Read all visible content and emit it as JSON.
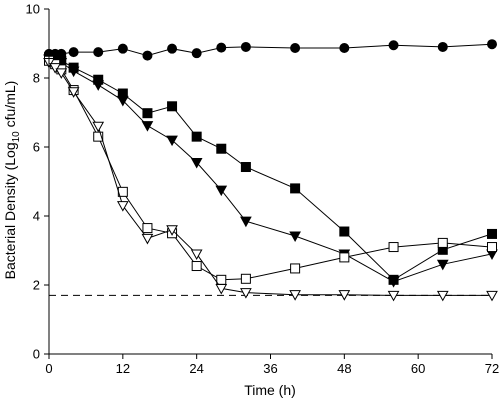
{
  "chart_data": {
    "type": "line",
    "xlabel": "Time (h)",
    "ylabel_main": "Bacterial Density (Log",
    "ylabel_sub": "10",
    "ylabel_tail": " cfu/mL)",
    "xlim": [
      0,
      72
    ],
    "ylim": [
      0,
      10
    ],
    "xticks": [
      0,
      12,
      24,
      36,
      48,
      60,
      72
    ],
    "yticks": [
      0,
      2,
      4,
      6,
      8,
      10
    ],
    "grid": false,
    "reference_line": {
      "y": 1.7,
      "style": "dashed"
    },
    "series": [
      {
        "marker": "circle",
        "filled": true,
        "x": [
          0,
          1,
          2,
          4,
          8,
          12,
          16,
          20,
          24,
          28,
          32,
          40,
          48,
          56,
          64,
          72
        ],
        "y": [
          8.7,
          8.7,
          8.7,
          8.75,
          8.75,
          8.85,
          8.65,
          8.85,
          8.72,
          8.88,
          8.9,
          8.87,
          8.87,
          8.95,
          8.9,
          8.98
        ]
      },
      {
        "marker": "square",
        "filled": true,
        "x": [
          0,
          1,
          2,
          4,
          8,
          12,
          16,
          20,
          24,
          28,
          32,
          40,
          48,
          56,
          64,
          72
        ],
        "y": [
          8.6,
          8.6,
          8.5,
          8.3,
          7.95,
          7.55,
          6.98,
          7.18,
          6.3,
          5.95,
          5.42,
          4.8,
          3.55,
          2.15,
          3.02,
          3.48
        ]
      },
      {
        "marker": "triangle-down",
        "filled": true,
        "x": [
          0,
          1,
          2,
          4,
          8,
          12,
          16,
          20,
          24,
          28,
          32,
          40,
          48,
          56,
          64,
          72
        ],
        "y": [
          8.55,
          8.55,
          8.45,
          8.2,
          7.8,
          7.35,
          6.62,
          6.2,
          5.55,
          4.75,
          3.85,
          3.42,
          2.9,
          2.1,
          2.6,
          2.9
        ]
      },
      {
        "marker": "square",
        "filled": false,
        "x": [
          0,
          1,
          2,
          4,
          8,
          12,
          16,
          20,
          24,
          28,
          32,
          40,
          48,
          56,
          64,
          72
        ],
        "y": [
          8.5,
          8.4,
          8.25,
          7.65,
          6.3,
          4.7,
          3.65,
          3.5,
          2.55,
          2.15,
          2.18,
          2.48,
          2.8,
          3.1,
          3.22,
          3.1
        ]
      },
      {
        "marker": "triangle-down",
        "filled": false,
        "x": [
          0,
          1,
          2,
          4,
          8,
          12,
          16,
          20,
          24,
          28,
          32,
          40,
          48,
          56,
          64,
          72
        ],
        "y": [
          8.45,
          8.3,
          8.15,
          7.6,
          6.6,
          4.3,
          3.35,
          3.6,
          2.9,
          1.9,
          1.78,
          1.72,
          1.72,
          1.7,
          1.7,
          1.7
        ]
      }
    ]
  }
}
